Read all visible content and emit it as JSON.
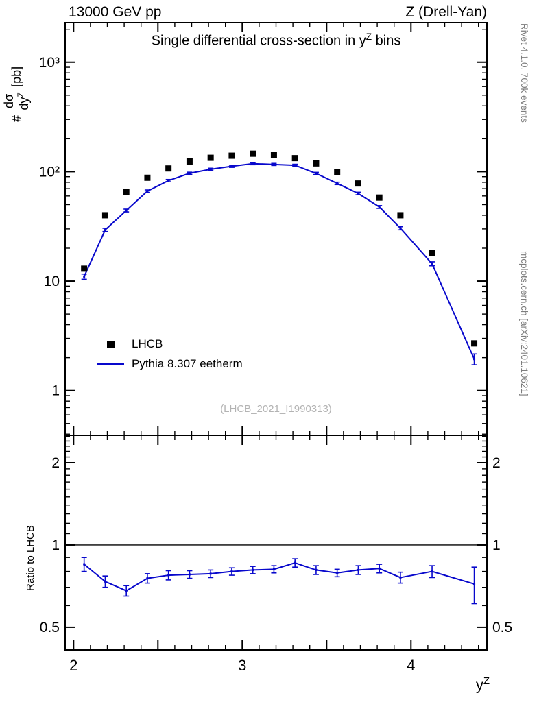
{
  "header": {
    "left": "13000 GeV pp",
    "right": "Z (Drell-Yan)"
  },
  "title": {
    "prefix": "Single differential cross-section in y",
    "sup": "Z",
    "suffix": " bins"
  },
  "axes": {
    "main_ylabel": {
      "prefix": "#",
      "numerator": "dσ",
      "denominator_base": "dy",
      "denominator_sup": "Z",
      "unit": "[pb]"
    },
    "ratio_ylabel": "Ratio to LHCB",
    "xlabel": {
      "base": "y",
      "sup": "Z"
    }
  },
  "legend": [
    {
      "label": "LHCB",
      "marker": "filled-square",
      "color": "#000000"
    },
    {
      "label": "Pythia 8.307 eetherm",
      "marker": "line",
      "color": "#0808cc"
    }
  ],
  "watermark": "(LHCB_2021_I1990313)",
  "side_labels": {
    "right_top": "Rivet 4.1.0,  700k events",
    "right_bottom": "mcplots.cern.ch [arXiv:2401.10621]"
  },
  "chart_data": [
    {
      "type": "line",
      "title": "Single differential cross-section in y^Z bins",
      "xlabel": "y^Z",
      "ylabel": "# dsigma/dy^Z [pb]",
      "x_axis": "linear",
      "y_axis": "log",
      "xlim": [
        1.95,
        4.45
      ],
      "ylim": [
        0.39,
        2300
      ],
      "xticks": [
        2,
        3,
        4
      ],
      "yticks": [
        1,
        10,
        100,
        1000
      ],
      "legend_position": "center-left",
      "grid": false,
      "x": [
        2.0625,
        2.1875,
        2.3125,
        2.4375,
        2.5625,
        2.6875,
        2.8125,
        2.9375,
        3.0625,
        3.1875,
        3.3125,
        3.4375,
        3.5625,
        3.6875,
        3.8125,
        3.9375,
        4.125,
        4.375
      ],
      "series": [
        {
          "name": "LHCB",
          "type": "scatter",
          "marker": "filled-square",
          "color": "#000000",
          "y": [
            13,
            40,
            65,
            88,
            107,
            124,
            134,
            140,
            146,
            143,
            133,
            119,
            99,
            78,
            58,
            40,
            18,
            2.7
          ]
        },
        {
          "name": "Pythia 8.307 eetherm",
          "type": "line-with-errors",
          "color": "#0808cc",
          "y": [
            11,
            29.4,
            44.2,
            66.4,
            82.9,
            96.7,
            105.2,
            112,
            118.3,
            116.5,
            114.4,
            96.4,
            78.2,
            63.2,
            47.6,
            30.4,
            14.4,
            1.94
          ],
          "yerr": [
            0.6,
            1.0,
            1.3,
            1.7,
            2.0,
            2.2,
            2.4,
            2.5,
            2.6,
            2.6,
            2.5,
            2.2,
            2.0,
            1.7,
            1.4,
            1.0,
            0.6,
            0.22
          ]
        }
      ]
    },
    {
      "type": "line",
      "title": "Ratio to LHCB",
      "xlabel": "y^Z",
      "ylabel": "Ratio to LHCB",
      "x_axis": "linear",
      "y_axis": "log",
      "xlim": [
        1.95,
        4.45
      ],
      "ylim": [
        0.413,
        2.52
      ],
      "xticks": [
        2,
        3,
        4
      ],
      "yticks": [
        0.5,
        1,
        2
      ],
      "reference_line": 1,
      "x": [
        2.0625,
        2.1875,
        2.3125,
        2.4375,
        2.5625,
        2.6875,
        2.8125,
        2.9375,
        3.0625,
        3.1875,
        3.3125,
        3.4375,
        3.5625,
        3.6875,
        3.8125,
        3.9375,
        4.125,
        4.375
      ],
      "series": [
        {
          "name": "Pythia 8.307 eetherm / LHCB",
          "type": "line-with-errors",
          "color": "#0808cc",
          "y": [
            0.85,
            0.735,
            0.68,
            0.755,
            0.775,
            0.78,
            0.785,
            0.8,
            0.81,
            0.815,
            0.86,
            0.81,
            0.79,
            0.81,
            0.82,
            0.76,
            0.8,
            0.72
          ],
          "yerr": [
            0.05,
            0.035,
            0.03,
            0.03,
            0.03,
            0.025,
            0.025,
            0.025,
            0.025,
            0.025,
            0.03,
            0.03,
            0.025,
            0.03,
            0.03,
            0.035,
            0.04,
            0.11
          ]
        }
      ]
    }
  ]
}
